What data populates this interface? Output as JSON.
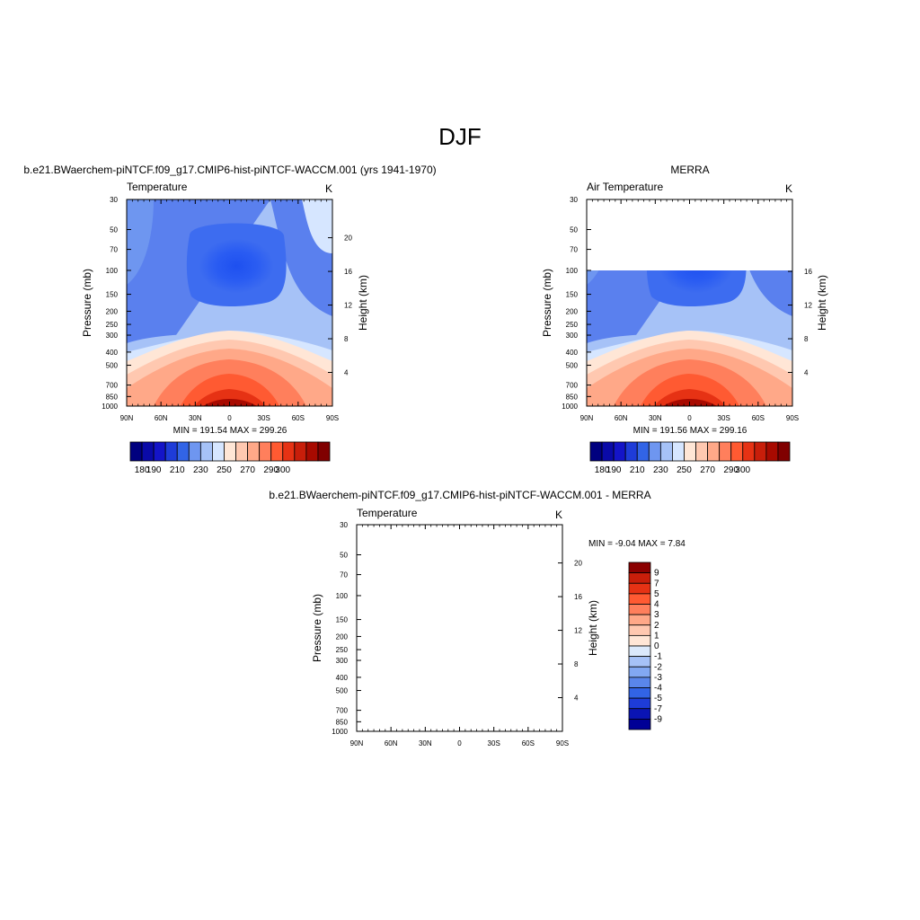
{
  "page_title": "DJF",
  "colors": {
    "frame": "#000000",
    "colorbar": [
      "#00007f",
      "#0a0aa8",
      "#1414c8",
      "#1e3cd8",
      "#3264e6",
      "#6e96f0",
      "#a6c2f7",
      "#d6e6ff",
      "#ffe6d6",
      "#ffc8b0",
      "#ffa888",
      "#ff7f5c",
      "#ff5a32",
      "#e63214",
      "#c81e0a",
      "#a80a00",
      "#800000"
    ]
  },
  "chart_data": [
    {
      "type": "heatmap",
      "name": "model",
      "subtitle": "b.e21.BWaerchem-piNTCF.f09_g17.CMIP6-hist-piNTCF-WACCM.001 (yrs 1941-1970)",
      "title": "Temperature",
      "units": "K",
      "ylabel": "Pressure (mb)",
      "ylabel_right": "Height (km)",
      "x_ticks": [
        "90N",
        "60N",
        "30N",
        "0",
        "30S",
        "60S",
        "90S"
      ],
      "y_ticks": [
        "30",
        "50",
        "70",
        "100",
        "150",
        "200",
        "250",
        "300",
        "400",
        "500",
        "700",
        "850",
        "1000"
      ],
      "y_right_ticks": [
        "4",
        "8",
        "12",
        "16",
        "20"
      ],
      "top_pressure": 30,
      "stats": "MIN = 191.54  MAX = 299.26",
      "min": 191.54,
      "max": 299.26,
      "colorbar_labels": [
        "180",
        "190",
        "210",
        "230",
        "250",
        "270",
        "290",
        "300"
      ]
    },
    {
      "type": "heatmap",
      "name": "obs",
      "subtitle": "MERRA",
      "title": "Air Temperature",
      "units": "K",
      "ylabel": "Pressure (mb)",
      "ylabel_right": "Height (km)",
      "x_ticks": [
        "90N",
        "60N",
        "30N",
        "0",
        "30S",
        "60S",
        "90S"
      ],
      "y_ticks": [
        "30",
        "50",
        "70",
        "100",
        "150",
        "200",
        "250",
        "300",
        "400",
        "500",
        "700",
        "850",
        "1000"
      ],
      "y_right_ticks": [
        "4",
        "8",
        "12",
        "16"
      ],
      "top_pressure": 100,
      "stats": "MIN = 191.56  MAX = 299.16",
      "min": 191.56,
      "max": 299.16,
      "colorbar_labels": [
        "180",
        "190",
        "210",
        "230",
        "250",
        "270",
        "290",
        "300"
      ]
    },
    {
      "type": "heatmap",
      "name": "diff",
      "subtitle": "b.e21.BWaerchem-piNTCF.f09_g17.CMIP6-hist-piNTCF-WACCM.001 - MERRA",
      "title": "Temperature",
      "units": "K",
      "ylabel": "Pressure (mb)",
      "ylabel_right": "Height (km)",
      "x_ticks": [
        "90N",
        "60N",
        "30N",
        "0",
        "30S",
        "60S",
        "90S"
      ],
      "y_ticks": [
        "30",
        "50",
        "70",
        "100",
        "150",
        "200",
        "250",
        "300",
        "400",
        "500",
        "700",
        "850",
        "1000"
      ],
      "y_right_ticks": [
        "4",
        "8",
        "12",
        "16",
        "20"
      ],
      "top_pressure": 100,
      "stats": "MIN =  -9.04  MAX =   7.84",
      "min": -9.04,
      "max": 7.84,
      "colorbar_labels": [
        "9",
        "7",
        "5",
        "4",
        "3",
        "2",
        "1",
        "0",
        "-1",
        "-2",
        "-3",
        "-4",
        "-5",
        "-7",
        "-9"
      ],
      "colorbar_colors": [
        "#8b0000",
        "#c81e0a",
        "#e63214",
        "#ff5a32",
        "#ff7f5c",
        "#ffa888",
        "#ffc8b0",
        "#ffe6d6",
        "#dbe9fb",
        "#a6c2f7",
        "#82a8f2",
        "#5a86ea",
        "#3264e6",
        "#1e3cd8",
        "#0a14b4",
        "#000096"
      ]
    }
  ]
}
